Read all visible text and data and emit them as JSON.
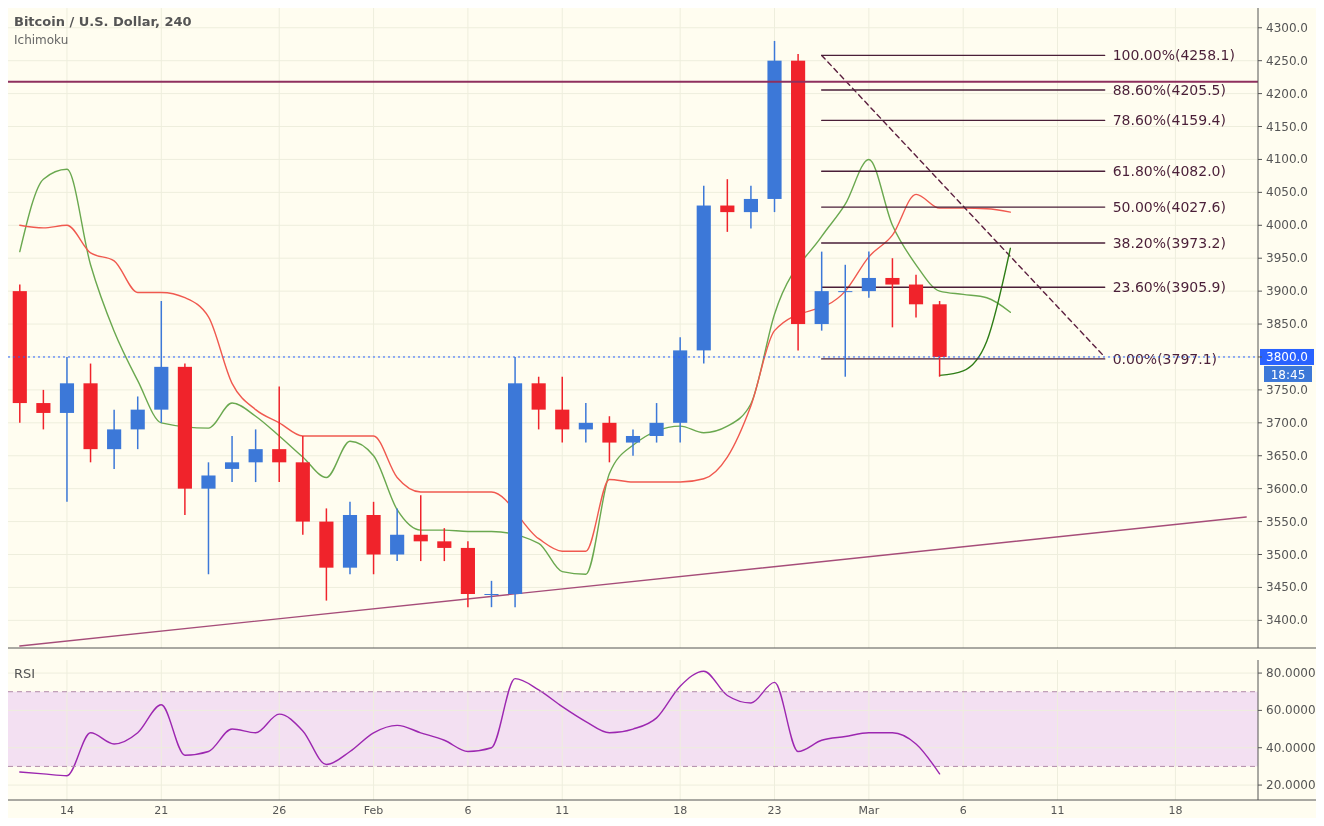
{
  "chart_data": [
    {
      "type": "candlestick",
      "title": "Bitcoin / U.S. Dollar, 240",
      "subtitle": "Ichimoku",
      "tick_labels": "y",
      "grid": true,
      "categories": [
        null,
        null,
        null,
        null,
        null,
        null,
        null,
        null,
        null,
        null,
        null,
        null,
        null,
        null,
        null,
        null,
        null,
        null,
        null,
        null,
        null,
        null,
        null,
        null,
        null,
        null,
        null,
        null,
        null,
        null,
        null,
        null,
        null,
        null,
        null,
        null,
        null,
        null,
        null,
        null,
        null,
        null,
        null,
        null,
        null,
        null,
        null,
        null,
        null,
        null,
        null,
        null,
        null
      ],
      "ohlc": [
        [
          3900,
          3910,
          3700,
          3730
        ],
        [
          3730,
          3750,
          3690,
          3715
        ],
        [
          3715,
          3800,
          3580,
          3760
        ],
        [
          3760,
          3790,
          3640,
          3660
        ],
        [
          3660,
          3720,
          3630,
          3690
        ],
        [
          3690,
          3740,
          3660,
          3720
        ],
        [
          3720,
          3885,
          3700,
          3785
        ],
        [
          3785,
          3790,
          3560,
          3600
        ],
        [
          3600,
          3640,
          3470,
          3620
        ],
        [
          3630,
          3680,
          3610,
          3640
        ],
        [
          3640,
          3690,
          3610,
          3660
        ],
        [
          3660,
          3755,
          3610,
          3640
        ],
        [
          3640,
          3680,
          3530,
          3550
        ],
        [
          3550,
          3570,
          3430,
          3480
        ],
        [
          3480,
          3580,
          3470,
          3560
        ],
        [
          3560,
          3580,
          3470,
          3500
        ],
        [
          3500,
          3570,
          3490,
          3530
        ],
        [
          3530,
          3590,
          3490,
          3520
        ],
        [
          3520,
          3540,
          3490,
          3510
        ],
        [
          3510,
          3520,
          3420,
          3440
        ],
        [
          3440,
          3460,
          3420,
          3440
        ],
        [
          3440,
          3800,
          3420,
          3760
        ],
        [
          3760,
          3770,
          3690,
          3720
        ],
        [
          3720,
          3770,
          3670,
          3690
        ],
        [
          3690,
          3730,
          3670,
          3700
        ],
        [
          3700,
          3710,
          3640,
          3670
        ],
        [
          3670,
          3690,
          3650,
          3680
        ],
        [
          3680,
          3730,
          3670,
          3700
        ],
        [
          3700,
          3830,
          3670,
          3810
        ],
        [
          3810,
          4060,
          3790,
          4030
        ],
        [
          4030,
          4070,
          3990,
          4020
        ],
        [
          4020,
          4060,
          3995,
          4040
        ],
        [
          4040,
          4280,
          4020,
          4250
        ],
        [
          4250,
          4260,
          3810,
          3850
        ],
        [
          3850,
          3960,
          3840,
          3900
        ],
        [
          3900,
          3940,
          3770,
          3900
        ],
        [
          3900,
          3960,
          3890,
          3920
        ],
        [
          3920,
          3950,
          3845,
          3910
        ],
        [
          3910,
          3925,
          3860,
          3880
        ],
        [
          3880,
          3885,
          3770,
          3800
        ],
        null,
        null,
        null,
        null,
        null,
        null,
        null,
        null,
        null,
        null,
        null,
        null,
        null
      ],
      "ylim": [
        3358,
        4330
      ],
      "yticks": [
        {
          "value": 3400,
          "label": "3400.0"
        },
        {
          "value": 3450,
          "label": "3450.0"
        },
        {
          "value": 3500,
          "label": "3500.0"
        },
        {
          "value": 3550,
          "label": "3550.0"
        },
        {
          "value": 3600,
          "label": "3600.0"
        },
        {
          "value": 3650,
          "label": "3650.0"
        },
        {
          "value": 3700,
          "label": "3700.0"
        },
        {
          "value": 3750,
          "label": "3750.0"
        },
        {
          "value": 3800,
          "label": "3800.0"
        },
        {
          "value": 3850,
          "label": "3850.0"
        },
        {
          "value": 3900,
          "label": "3900.0"
        },
        {
          "value": 3950,
          "label": "3950.0"
        },
        {
          "value": 4000,
          "label": "4000.0"
        },
        {
          "value": 4050,
          "label": "4050.0"
        },
        {
          "value": 4100,
          "label": "4100.0"
        },
        {
          "value": 4150,
          "label": "4150.0"
        },
        {
          "value": 4200,
          "label": "4200.0"
        },
        {
          "value": 4250,
          "label": "4250.0"
        },
        {
          "value": 4300,
          "label": "4300.0"
        }
      ],
      "series": [
        {
          "type": "line",
          "color": "#6aa84f",
          "values": [
            3960,
            4070,
            4085,
            3940,
            3839,
            3764,
            3700,
            null,
            3692,
            3730,
            3710,
            3680,
            3648,
            3617,
            3672,
            3650,
            3568,
            3537,
            3537,
            3535,
            3535,
            null,
            3517,
            3474,
            3470,
            3623,
            3666,
            null,
            3695,
            3685,
            3695,
            3729,
            3865,
            null,
            3983,
            4032,
            4100,
            4000,
            3940,
            3900,
            3895,
            3890,
            3868,
            null,
            null,
            null,
            null,
            null,
            null,
            null,
            null,
            null,
            null
          ]
        },
        {
          "type": "line",
          "color": "#f0594f",
          "values": [
            4000,
            3996,
            4000,
            3958,
            3946,
            3898,
            3898,
            3890,
            3861,
            3760,
            3720,
            3700,
            3680,
            3680,
            3680,
            3680,
            3617,
            3595,
            3595,
            3595,
            3595,
            null,
            3524,
            3505,
            3505,
            3614,
            3610,
            3610,
            3610,
            3615,
            3648,
            3726,
            3840,
            null,
            null,
            3900,
            3952,
            3985,
            4047,
            4026,
            4026,
            4025,
            4020,
            null,
            null,
            null,
            null,
            null,
            null,
            null,
            null,
            null,
            null
          ]
        },
        {
          "type": "line",
          "color": "#a64d79",
          "values": [
            3361,
            null,
            null,
            null,
            null,
            null,
            null,
            null,
            null,
            null,
            null,
            null,
            null,
            null,
            null,
            null,
            null,
            null,
            null,
            null,
            null,
            null,
            null,
            null,
            null,
            null,
            null,
            null,
            null,
            null,
            null,
            null,
            null,
            null,
            null,
            null,
            null,
            null,
            null,
            null,
            null,
            null,
            null,
            null,
            null,
            null,
            null,
            null,
            null,
            null,
            null,
            null,
            3557
          ]
        },
        {
          "type": "line",
          "color": "#5b1f3f",
          "line_style": "dashed",
          "values": [
            null,
            null,
            null,
            null,
            null,
            null,
            null,
            null,
            null,
            null,
            null,
            null,
            null,
            null,
            null,
            null,
            null,
            null,
            null,
            null,
            null,
            null,
            null,
            null,
            null,
            null,
            null,
            null,
            null,
            null,
            null,
            null,
            null,
            null,
            4258,
            null,
            null,
            null,
            null,
            null,
            null,
            null,
            null,
            null,
            null,
            null,
            3800,
            null,
            null,
            null,
            null,
            null,
            null
          ]
        },
        {
          "type": "line",
          "color": "#2e7d16",
          "values": [
            null,
            null,
            null,
            null,
            null,
            null,
            null,
            null,
            null,
            null,
            null,
            null,
            null,
            null,
            null,
            null,
            null,
            null,
            null,
            null,
            null,
            null,
            null,
            null,
            null,
            null,
            null,
            null,
            null,
            null,
            null,
            null,
            null,
            null,
            null,
            null,
            null,
            null,
            null,
            3772,
            3779,
            3824,
            3965,
            null,
            null,
            null,
            null,
            null,
            null,
            null,
            null,
            null,
            null
          ]
        },
        {
          "type": "line",
          "name": "100.00%(4258.1)",
          "color": "#4a1f38",
          "values": [
            null,
            null,
            null,
            null,
            null,
            null,
            null,
            null,
            null,
            null,
            null,
            null,
            null,
            null,
            null,
            null,
            null,
            null,
            null,
            null,
            null,
            null,
            null,
            null,
            null,
            null,
            null,
            null,
            null,
            null,
            null,
            null,
            null,
            null,
            4258.1,
            null,
            null,
            null,
            null,
            null,
            null,
            null,
            null,
            null,
            null,
            null,
            4258.1,
            null,
            null,
            null,
            null,
            null,
            null
          ]
        },
        {
          "type": "line",
          "name": "88.60%(4205.5)",
          "color": "#4a1f38",
          "values": [
            null,
            null,
            null,
            null,
            null,
            null,
            null,
            null,
            null,
            null,
            null,
            null,
            null,
            null,
            null,
            null,
            null,
            null,
            null,
            null,
            null,
            null,
            null,
            null,
            null,
            null,
            null,
            null,
            null,
            null,
            null,
            null,
            null,
            null,
            4205.5,
            null,
            null,
            null,
            null,
            null,
            null,
            null,
            null,
            null,
            null,
            null,
            4205.5,
            null,
            null,
            null,
            null,
            null,
            null
          ]
        },
        {
          "type": "line",
          "name": "78.60%(4159.4)",
          "color": "#4a1f38",
          "values": [
            null,
            null,
            null,
            null,
            null,
            null,
            null,
            null,
            null,
            null,
            null,
            null,
            null,
            null,
            null,
            null,
            null,
            null,
            null,
            null,
            null,
            null,
            null,
            null,
            null,
            null,
            null,
            null,
            null,
            null,
            null,
            null,
            null,
            null,
            4159.4,
            null,
            null,
            null,
            null,
            null,
            null,
            null,
            null,
            null,
            null,
            null,
            4159.4,
            null,
            null,
            null,
            null,
            null,
            null
          ]
        },
        {
          "type": "line",
          "name": "61.80%(4082.0)",
          "color": "#4a1f38",
          "values": [
            null,
            null,
            null,
            null,
            null,
            null,
            null,
            null,
            null,
            null,
            null,
            null,
            null,
            null,
            null,
            null,
            null,
            null,
            null,
            null,
            null,
            null,
            null,
            null,
            null,
            null,
            null,
            null,
            null,
            null,
            null,
            null,
            null,
            null,
            4082.0,
            null,
            null,
            null,
            null,
            null,
            null,
            null,
            null,
            null,
            null,
            null,
            4082.0,
            null,
            null,
            null,
            null,
            null,
            null
          ]
        },
        {
          "type": "line",
          "name": "50.00%(4027.6)",
          "color": "#4a1f38",
          "values": [
            null,
            null,
            null,
            null,
            null,
            null,
            null,
            null,
            null,
            null,
            null,
            null,
            null,
            null,
            null,
            null,
            null,
            null,
            null,
            null,
            null,
            null,
            null,
            null,
            null,
            null,
            null,
            null,
            null,
            null,
            null,
            null,
            null,
            null,
            4027.6,
            null,
            null,
            null,
            null,
            null,
            null,
            null,
            null,
            null,
            null,
            null,
            4027.6,
            null,
            null,
            null,
            null,
            null,
            null
          ]
        },
        {
          "type": "line",
          "name": "38.20%(3973.2)",
          "color": "#4a1f38",
          "values": [
            null,
            null,
            null,
            null,
            null,
            null,
            null,
            null,
            null,
            null,
            null,
            null,
            null,
            null,
            null,
            null,
            null,
            null,
            null,
            null,
            null,
            null,
            null,
            null,
            null,
            null,
            null,
            null,
            null,
            null,
            null,
            null,
            null,
            null,
            3973.2,
            null,
            null,
            null,
            null,
            null,
            null,
            null,
            null,
            null,
            null,
            null,
            3973.2,
            null,
            null,
            null,
            null,
            null,
            null
          ]
        },
        {
          "type": "line",
          "name": "23.60%(3905.9)",
          "color": "#4a1f38",
          "values": [
            null,
            null,
            null,
            null,
            null,
            null,
            null,
            null,
            null,
            null,
            null,
            null,
            null,
            null,
            null,
            null,
            null,
            null,
            null,
            null,
            null,
            null,
            null,
            null,
            null,
            null,
            null,
            null,
            null,
            null,
            null,
            null,
            null,
            null,
            3905.9,
            null,
            null,
            null,
            null,
            null,
            null,
            null,
            null,
            null,
            null,
            null,
            3905.9,
            null,
            null,
            null,
            null,
            null,
            null
          ]
        },
        {
          "type": "line",
          "name": "0.00%(3797.1)",
          "color": "#4a1f38",
          "values": [
            null,
            null,
            null,
            null,
            null,
            null,
            null,
            null,
            null,
            null,
            null,
            null,
            null,
            null,
            null,
            null,
            null,
            null,
            null,
            null,
            null,
            null,
            null,
            null,
            null,
            null,
            null,
            null,
            null,
            null,
            null,
            null,
            null,
            null,
            3797.1,
            null,
            null,
            null,
            null,
            null,
            null,
            null,
            null,
            null,
            null,
            null,
            3797.1,
            null,
            null,
            null,
            null,
            null,
            null
          ]
        }
      ],
      "ref_lines": [
        {
          "axis": "y",
          "value": 4218,
          "color": "#8e2f5e"
        },
        {
          "axis": "y",
          "value": 3800,
          "color": "#2962ff",
          "line_style": "dotted"
        }
      ],
      "annotations": [
        "18:45"
      ]
    },
    {
      "type": "line",
      "title": "RSI",
      "grid": true,
      "categories": [
        null,
        null,
        "14",
        null,
        null,
        null,
        "21",
        null,
        null,
        null,
        null,
        "26",
        null,
        null,
        null,
        "Feb",
        null,
        null,
        null,
        "6",
        null,
        null,
        null,
        "11",
        null,
        null,
        null,
        null,
        "18",
        null,
        null,
        null,
        "23",
        null,
        null,
        null,
        "Mar",
        null,
        null,
        null,
        "6",
        null,
        null,
        null,
        "11",
        null,
        null,
        null,
        null,
        "18",
        null,
        null,
        null
      ],
      "ylim": [
        12,
        87
      ],
      "yticks": [
        {
          "value": 20,
          "label": "20.0000"
        },
        {
          "value": 40,
          "label": "40.0000"
        },
        {
          "value": 60,
          "label": "60.0000"
        },
        {
          "value": 80,
          "label": "80.0000"
        }
      ],
      "bands": [
        {
          "axis": "y",
          "from": 30,
          "to": 70,
          "color": "#f3e0f2"
        }
      ],
      "ref_lines": [
        {
          "axis": "y",
          "value": 70,
          "color": "#b08aa8",
          "line_style": "dashed"
        },
        {
          "axis": "y",
          "value": 30,
          "color": "#b08aa8",
          "line_style": "dashed"
        }
      ],
      "series": [
        {
          "color": "#9c27b0",
          "values": [
            27,
            26,
            25,
            48,
            42,
            48,
            63,
            36,
            38,
            50,
            48,
            58,
            49,
            31,
            38,
            48,
            52,
            48,
            44,
            38,
            40,
            77,
            71,
            62,
            54,
            48,
            50,
            56,
            73,
            81,
            68,
            64,
            75,
            38,
            44,
            46,
            48,
            48,
            42,
            26,
            null,
            null,
            null,
            null,
            null,
            null,
            null,
            null,
            null,
            null,
            null,
            null,
            null
          ]
        }
      ]
    }
  ]
}
